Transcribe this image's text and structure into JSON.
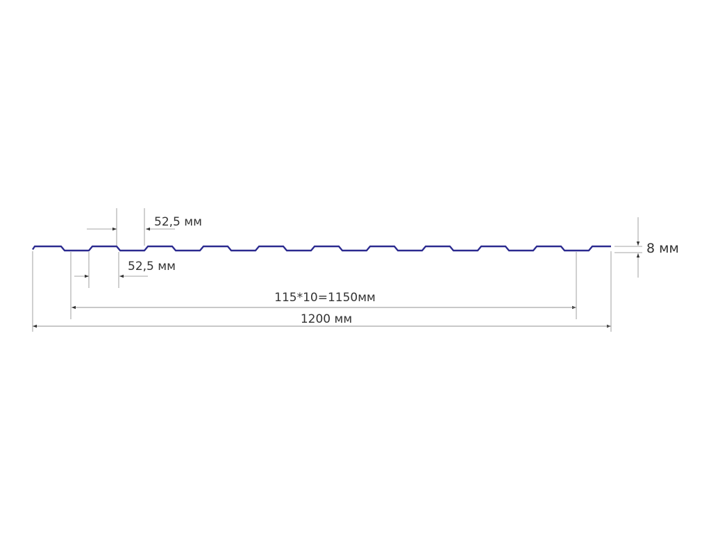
{
  "colors": {
    "profile": "#2b2a8f",
    "dimension": "#888888",
    "text": "#333333"
  },
  "profile": {
    "corrugations": 11
  },
  "labels": {
    "top_pitch": "52,5 мм",
    "bottom_pitch": "52,5 мм",
    "working_width": "115*10=1150мм",
    "total_width": "1200 мм",
    "height": "8 мм"
  }
}
